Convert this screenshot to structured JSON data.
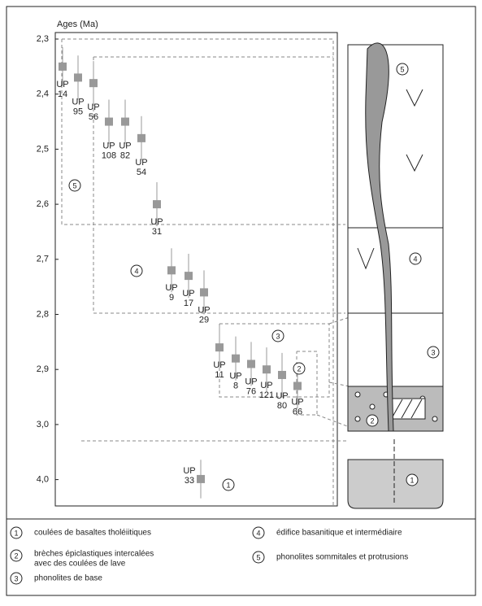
{
  "chart_data": {
    "type": "errorbar",
    "y_label": "Ages (Ma)",
    "ylim": [
      2.3,
      4.0
    ],
    "yticks": [
      {
        "value": 2.3,
        "label": "2,3"
      },
      {
        "value": 2.4,
        "label": "2,4"
      },
      {
        "value": 2.5,
        "label": "2,5"
      },
      {
        "value": 2.6,
        "label": "2,6"
      },
      {
        "value": 2.7,
        "label": "2,7"
      },
      {
        "value": 2.8,
        "label": "2,8"
      },
      {
        "value": 2.9,
        "label": "2,9"
      },
      {
        "value": 3.0,
        "label": "3,0"
      },
      {
        "value": 4.0,
        "label": "4,0"
      }
    ],
    "color": "#999999",
    "samples": [
      {
        "code": "UP",
        "number": "14",
        "age": 2.35,
        "error": 0.035
      },
      {
        "code": "UP",
        "number": "95",
        "age": 2.37,
        "error": 0.04
      },
      {
        "code": "UP",
        "number": "56",
        "age": 2.38,
        "error": 0.04
      },
      {
        "code": "UP",
        "number": "108",
        "age": 2.45,
        "error": 0.04
      },
      {
        "code": "UP",
        "number": "82",
        "age": 2.45,
        "error": 0.04
      },
      {
        "code": "UP",
        "number": "54",
        "age": 2.48,
        "error": 0.04
      },
      {
        "code": "UP",
        "number": "31",
        "age": 2.6,
        "error": 0.04
      },
      {
        "code": "UP",
        "number": "9",
        "age": 2.72,
        "error": 0.04
      },
      {
        "code": "UP",
        "number": "17",
        "age": 2.73,
        "error": 0.04
      },
      {
        "code": "UP",
        "number": "29",
        "age": 2.76,
        "error": 0.04
      },
      {
        "code": "UP",
        "number": "11",
        "age": 2.86,
        "error": 0.04
      },
      {
        "code": "UP",
        "number": "8",
        "age": 2.88,
        "error": 0.04
      },
      {
        "code": "UP",
        "number": "76",
        "age": 2.89,
        "error": 0.04
      },
      {
        "code": "UP",
        "number": "121",
        "age": 2.9,
        "error": 0.04
      },
      {
        "code": "UP",
        "number": "80",
        "age": 2.91,
        "error": 0.04
      },
      {
        "code": "UP",
        "number": "66",
        "age": 2.93,
        "error": 0.04
      },
      {
        "code": "UP",
        "number": "33",
        "age": 3.99,
        "error": 0.35
      }
    ],
    "units": [
      {
        "number": "1",
        "lines": [
          "coulées de basaltes tholéiitiques"
        ]
      },
      {
        "number": "2",
        "lines": [
          "brèches épiclastiques intercalées",
          "avec des coulées de lave"
        ]
      },
      {
        "number": "3",
        "lines": [
          "phonolites de base"
        ]
      },
      {
        "number": "4",
        "lines": [
          "édifice basanitique et intermédiaire"
        ]
      },
      {
        "number": "5",
        "lines": [
          "phonolites sommitales et protrusions"
        ]
      }
    ]
  }
}
